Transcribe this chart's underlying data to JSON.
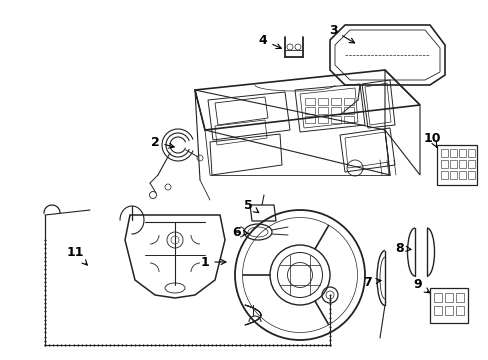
{
  "bg_color": "#ffffff",
  "line_color": "#222222",
  "fig_width": 4.89,
  "fig_height": 3.6,
  "dpi": 100
}
